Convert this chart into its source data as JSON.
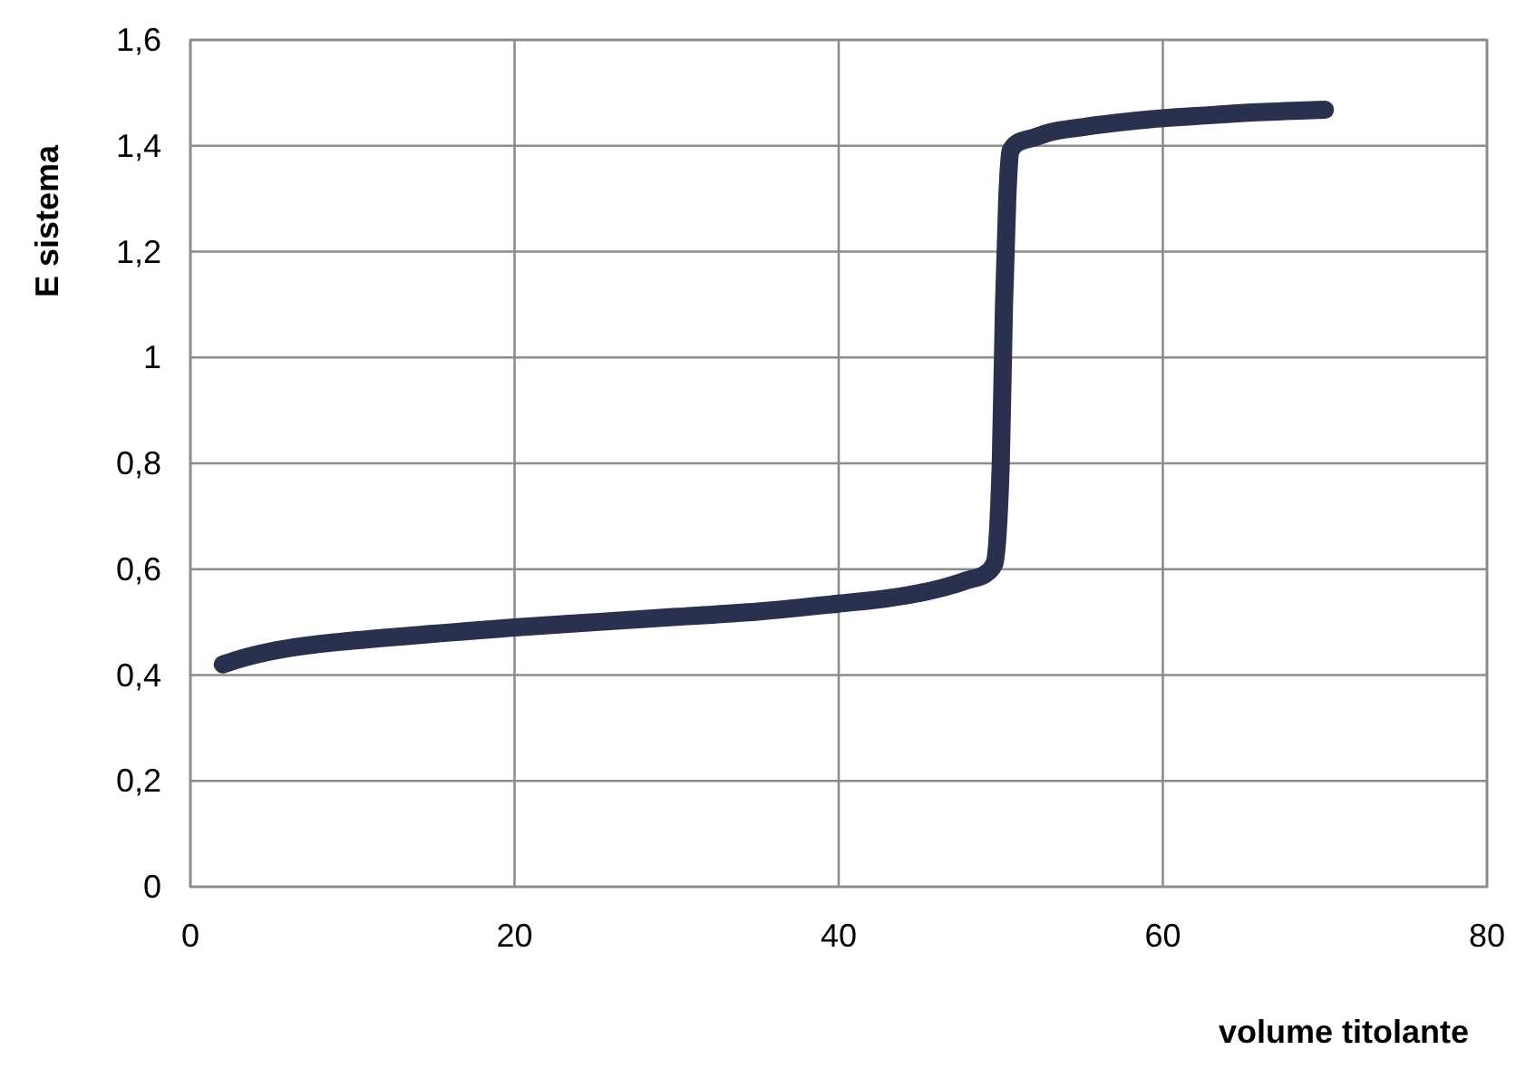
{
  "chart_data": {
    "type": "line",
    "xlabel": "volume titolante",
    "ylabel": "E sistema",
    "x": [
      2,
      3,
      5,
      7,
      10,
      15,
      20,
      25,
      30,
      35,
      40,
      43,
      45,
      47,
      48,
      49,
      49.6,
      50,
      50.2,
      50.4,
      50.6,
      51,
      52,
      53,
      55,
      57,
      60,
      63,
      65,
      68,
      70
    ],
    "series": [
      {
        "color": "#29314f",
        "values": [
          0.42,
          0.43,
          0.445,
          0.455,
          0.465,
          0.478,
          0.49,
          0.5,
          0.51,
          0.52,
          0.535,
          0.545,
          0.555,
          0.57,
          0.58,
          0.59,
          0.61,
          0.8,
          1.1,
          1.3,
          1.39,
          1.405,
          1.415,
          1.425,
          1.435,
          1.443,
          1.452,
          1.458,
          1.462,
          1.466,
          1.468
        ]
      }
    ],
    "xlim": [
      0,
      80
    ],
    "xticks": [
      0,
      20,
      40,
      60,
      80
    ],
    "ylim": [
      0,
      1.6
    ],
    "yticks": [
      0,
      {
        "value": 0.2,
        "label": "0,2"
      },
      {
        "value": 0.4,
        "label": "0,4"
      },
      {
        "value": 0.6,
        "label": "0,6"
      },
      {
        "value": 0.8,
        "label": "0,8"
      },
      1,
      {
        "value": 1.2,
        "label": "1,2"
      },
      {
        "value": 1.4,
        "label": "1,4"
      },
      {
        "value": 1.6,
        "label": "1,6"
      }
    ],
    "grid": true,
    "marker": "none",
    "line_style": "solid"
  }
}
